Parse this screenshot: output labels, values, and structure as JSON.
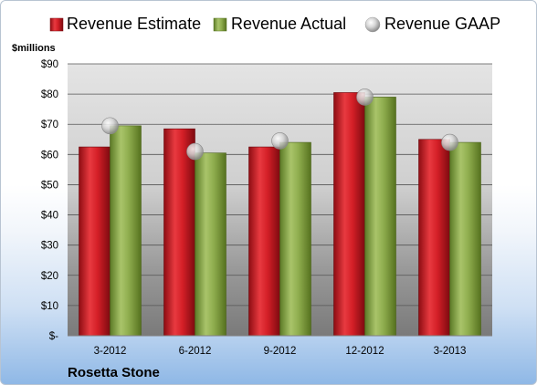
{
  "chart_data": {
    "type": "bar",
    "title": "",
    "ylabel": "$millions",
    "xlabel": "",
    "company": "Rosetta Stone",
    "categories": [
      "3-2012",
      "6-2012",
      "9-2012",
      "12-2012",
      "3-2013"
    ],
    "yticks": [
      "$-",
      "$10",
      "$20",
      "$30",
      "$40",
      "$50",
      "$60",
      "$70",
      "$80",
      "$90"
    ],
    "ylim": [
      0,
      90
    ],
    "grid": true,
    "legend_position": "top",
    "series": [
      {
        "name": "Revenue Estimate",
        "kind": "bar",
        "color": "#d0202a",
        "values": [
          62.5,
          68.5,
          62.5,
          80.5,
          65.0
        ]
      },
      {
        "name": "Revenue Actual",
        "kind": "bar",
        "color": "#8fad4e",
        "values": [
          69.5,
          60.5,
          64.0,
          79.0,
          64.0
        ]
      },
      {
        "name": "Revenue GAAP",
        "kind": "marker",
        "color": "#c8c8c8",
        "values": [
          69.5,
          61.0,
          64.5,
          79.0,
          64.0
        ]
      }
    ]
  }
}
